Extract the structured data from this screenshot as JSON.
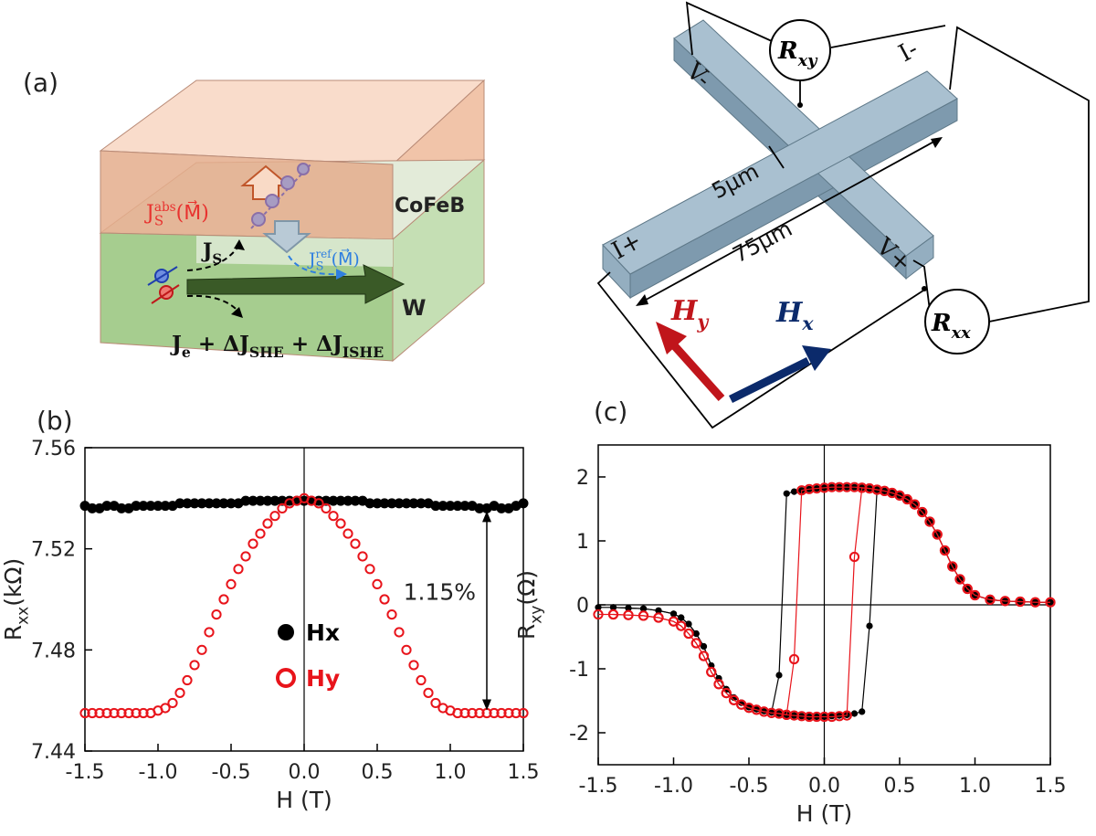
{
  "diagram_a": {
    "label": "(a)",
    "top_layer": "CoFeB",
    "bottom_layer": "W",
    "absorbed_spin_current": [
      {
        "text": "J",
        "sub": "S",
        "sup": "abs"
      },
      {
        "text": "(M⃗)"
      }
    ],
    "spin_current": [
      {
        "text": "J",
        "sub": "S"
      }
    ],
    "reflected_spin_current": [
      {
        "text": "J",
        "sub": "S",
        "sup": "ref"
      },
      {
        "text": "(M⃗)"
      }
    ],
    "charge_current": [
      {
        "text": "J",
        "sub": "e"
      },
      {
        "text": " + ΔJ",
        "sub": "SHE"
      },
      {
        "text": " + ΔJ",
        "sub": "ISHE"
      }
    ]
  },
  "device": {
    "pads": [
      "V-",
      "I-",
      "I+",
      "V+"
    ],
    "r_xy": [
      {
        "text": "R",
        "sub": "xy"
      }
    ],
    "r_xx": [
      {
        "text": "R",
        "sub": "xx"
      }
    ],
    "width": "5μm",
    "length": "75μm",
    "field_y": [
      {
        "text": "H",
        "sub": "y"
      }
    ],
    "field_x": [
      {
        "text": "H",
        "sub": "x"
      }
    ]
  },
  "chart_data": [
    {
      "type": "scatter",
      "panel_label": "(b)",
      "xlabel": "H (T)",
      "ylabel": [
        {
          "text": "R",
          "sub": "xx"
        },
        {
          "text": "(kΩ)"
        }
      ],
      "xlim": [
        -1.5,
        1.5
      ],
      "ylim": [
        7.44,
        7.56
      ],
      "xticks": [
        {
          "value": -1.5,
          "label": "-1.5"
        },
        {
          "value": -1,
          "label": "-1.0"
        },
        {
          "value": -0.5,
          "label": "-0.5"
        },
        {
          "value": 0,
          "label": "0.0"
        },
        0.5,
        {
          "value": 1,
          "label": "1.0"
        },
        1.5
      ],
      "yticks": [
        7.44,
        7.48,
        7.52,
        7.56
      ],
      "zero_lines": [
        "x"
      ],
      "legend": true,
      "annotation": "1.15%",
      "x": [
        -1.5,
        -1.45,
        -1.4,
        -1.35,
        -1.3,
        -1.25,
        -1.2,
        -1.15,
        -1.1,
        -1.05,
        -1,
        -0.95,
        -0.9,
        -0.85,
        -0.8,
        -0.75,
        -0.7,
        -0.65,
        -0.6,
        -0.55,
        -0.5,
        -0.45,
        -0.4,
        -0.35,
        -0.3,
        -0.25,
        -0.2,
        -0.15,
        -0.1,
        -0.05,
        0,
        0.05,
        0.1,
        0.15,
        0.2,
        0.25,
        0.3,
        0.35,
        0.4,
        0.45,
        0.5,
        0.55,
        0.6,
        0.65,
        0.7,
        0.75,
        0.8,
        0.85,
        0.9,
        0.95,
        1,
        1.05,
        1.1,
        1.15,
        1.2,
        1.25,
        1.3,
        1.35,
        1.4,
        1.45,
        1.5
      ],
      "series": [
        {
          "name": "Hx",
          "color": "#000000",
          "marker": "filled",
          "values": [
            7.537,
            7.536,
            7.536,
            7.537,
            7.537,
            7.536,
            7.536,
            7.537,
            7.537,
            7.537,
            7.537,
            7.537,
            7.537,
            7.538,
            7.538,
            7.538,
            7.538,
            7.538,
            7.538,
            7.538,
            7.538,
            7.538,
            7.539,
            7.539,
            7.539,
            7.539,
            7.539,
            7.539,
            7.539,
            7.539,
            7.539,
            7.539,
            7.539,
            7.539,
            7.539,
            7.539,
            7.539,
            7.539,
            7.539,
            7.538,
            7.538,
            7.538,
            7.538,
            7.538,
            7.538,
            7.538,
            7.538,
            7.538,
            7.537,
            7.537,
            7.537,
            7.537,
            7.537,
            7.537,
            7.536,
            7.536,
            7.537,
            7.536,
            7.536,
            7.537,
            7.538
          ]
        },
        {
          "name": "Hy",
          "color": "#e8141b",
          "marker": "open",
          "values": [
            7.455,
            7.455,
            7.455,
            7.455,
            7.455,
            7.455,
            7.455,
            7.455,
            7.455,
            7.455,
            7.456,
            7.457,
            7.459,
            7.463,
            7.468,
            7.474,
            7.48,
            7.487,
            7.494,
            7.5,
            7.506,
            7.512,
            7.517,
            7.522,
            7.526,
            7.53,
            7.533,
            7.536,
            7.538,
            7.539,
            7.54,
            7.539,
            7.538,
            7.536,
            7.533,
            7.53,
            7.526,
            7.522,
            7.517,
            7.512,
            7.506,
            7.5,
            7.494,
            7.487,
            7.48,
            7.474,
            7.468,
            7.463,
            7.459,
            7.457,
            7.456,
            7.455,
            7.455,
            7.455,
            7.455,
            7.455,
            7.455,
            7.455,
            7.455,
            7.455,
            7.455
          ]
        }
      ]
    },
    {
      "type": "scatter",
      "panel_label": "(c)",
      "xlabel": "H (T)",
      "ylabel": [
        {
          "text": "R",
          "sub": "xy"
        },
        {
          "text": "(Ω)"
        }
      ],
      "xlim": [
        -1.5,
        1.5
      ],
      "ylim": [
        -2.5,
        2.5
      ],
      "xticks": [
        {
          "value": -1.5,
          "label": "-1.5"
        },
        {
          "value": -1,
          "label": "-1.0"
        },
        {
          "value": -0.5,
          "label": "-0.5"
        },
        {
          "value": 0,
          "label": "0.0"
        },
        0.5,
        {
          "value": 1,
          "label": "1.0"
        },
        1.5
      ],
      "yticks": [
        -2,
        -1,
        0,
        1,
        2
      ],
      "zero_lines": [
        "x",
        "y"
      ],
      "connect": true,
      "series": [
        {
          "color": "#000000",
          "marker": "filled",
          "x": [
            1.5,
            1.4,
            1.3,
            1.2,
            1.1,
            1,
            0.95,
            0.9,
            0.85,
            0.8,
            0.75,
            0.7,
            0.65,
            0.6,
            0.55,
            0.5,
            0.45,
            0.4,
            0.35,
            0.3,
            0.25,
            0.2,
            0.15,
            0.1,
            0.05,
            0,
            -0.05,
            -0.1,
            -0.15,
            -0.2,
            -0.25,
            -0.3,
            -0.35,
            -0.4,
            -0.45,
            -0.5,
            -0.55,
            -0.6,
            -0.65,
            -0.7,
            -0.75,
            -0.8,
            -0.85,
            -0.9,
            -0.95,
            -1,
            -1.1,
            -1.2,
            -1.3,
            -1.4,
            -1.5
          ],
          "values": [
            0.04,
            0.04,
            0.05,
            0.06,
            0.08,
            0.15,
            0.25,
            0.4,
            0.6,
            0.85,
            1.1,
            1.3,
            1.45,
            1.57,
            1.65,
            1.71,
            1.75,
            1.78,
            1.8,
            1.82,
            1.83,
            1.84,
            1.84,
            1.84,
            1.84,
            1.83,
            1.82,
            1.81,
            1.79,
            1.77,
            1.74,
            -1.1,
            -1.68,
            -1.66,
            -1.63,
            -1.6,
            -1.53,
            -1.45,
            -1.32,
            -1.15,
            -0.95,
            -0.65,
            -0.45,
            -0.3,
            -0.2,
            -0.14,
            -0.09,
            -0.06,
            -0.05,
            -0.04,
            -0.04
          ]
        },
        {
          "color": "#000000",
          "marker": "filled",
          "x": [
            -1.4,
            -1.3,
            -1.2,
            -1.1,
            -1,
            -0.95,
            -0.9,
            -0.85,
            -0.8,
            -0.75,
            -0.7,
            -0.65,
            -0.6,
            -0.55,
            -0.5,
            -0.45,
            -0.4,
            -0.35,
            -0.3,
            -0.25,
            -0.2,
            -0.15,
            -0.1,
            -0.05,
            0,
            0.05,
            0.1,
            0.15,
            0.2,
            0.25,
            0.3,
            0.35,
            0.4,
            0.45,
            0.5,
            0.55,
            0.6,
            0.65,
            0.7,
            0.75,
            0.8,
            0.85,
            0.9,
            0.95,
            1,
            1.1,
            1.2,
            1.3,
            1.4,
            1.5
          ],
          "values": [
            -0.04,
            -0.05,
            -0.06,
            -0.09,
            -0.14,
            -0.2,
            -0.3,
            -0.45,
            -0.65,
            -0.95,
            -1.15,
            -1.32,
            -1.45,
            -1.53,
            -1.6,
            -1.63,
            -1.66,
            -1.68,
            -1.7,
            -1.72,
            -1.73,
            -1.74,
            -1.75,
            -1.75,
            -1.75,
            -1.74,
            -1.73,
            -1.72,
            -1.7,
            -1.67,
            -0.33,
            1.8,
            1.78,
            1.75,
            1.71,
            1.65,
            1.57,
            1.45,
            1.3,
            1.1,
            0.85,
            0.6,
            0.4,
            0.25,
            0.15,
            0.08,
            0.06,
            0.05,
            0.04,
            0.04
          ]
        },
        {
          "color": "#e8141b",
          "marker": "open",
          "x": [
            1.5,
            1.4,
            1.3,
            1.2,
            1.1,
            1,
            0.95,
            0.9,
            0.85,
            0.8,
            0.75,
            0.7,
            0.65,
            0.6,
            0.55,
            0.5,
            0.45,
            0.4,
            0.35,
            0.3,
            0.25,
            0.2,
            0.15,
            0.1,
            0.05,
            0,
            -0.05,
            -0.1,
            -0.15,
            -0.2,
            -0.25,
            -0.3,
            -0.35,
            -0.4,
            -0.45,
            -0.5,
            -0.55,
            -0.6,
            -0.65,
            -0.7,
            -0.75,
            -0.8,
            -0.85,
            -0.9,
            -0.95,
            -1,
            -1.1,
            -1.2,
            -1.3,
            -1.4,
            -1.5
          ],
          "values": [
            0.04,
            0.04,
            0.05,
            0.06,
            0.08,
            0.15,
            0.25,
            0.4,
            0.6,
            0.85,
            1.1,
            1.3,
            1.45,
            1.57,
            1.65,
            1.71,
            1.75,
            1.78,
            1.8,
            1.82,
            1.83,
            1.84,
            1.84,
            1.84,
            1.84,
            1.83,
            1.82,
            1.81,
            1.79,
            -0.85,
            -1.72,
            -1.7,
            -1.69,
            -1.67,
            -1.64,
            -1.61,
            -1.56,
            -1.49,
            -1.38,
            -1.24,
            -1.05,
            -0.8,
            -0.6,
            -0.45,
            -0.33,
            -0.26,
            -0.2,
            -0.17,
            -0.16,
            -0.15,
            -0.15
          ]
        },
        {
          "color": "#e8141b",
          "marker": "open",
          "x": [
            -1.4,
            -1.3,
            -1.2,
            -1.1,
            -1,
            -0.95,
            -0.9,
            -0.85,
            -0.8,
            -0.75,
            -0.7,
            -0.65,
            -0.6,
            -0.55,
            -0.5,
            -0.45,
            -0.4,
            -0.35,
            -0.3,
            -0.25,
            -0.2,
            -0.15,
            -0.1,
            -0.05,
            0,
            0.05,
            0.1,
            0.15,
            0.2,
            0.25,
            0.3,
            0.35,
            0.4,
            0.45,
            0.5,
            0.55,
            0.6,
            0.65,
            0.7,
            0.75,
            0.8,
            0.85,
            0.9,
            0.95,
            1,
            1.1,
            1.2,
            1.3,
            1.4,
            1.5
          ],
          "values": [
            -0.15,
            -0.16,
            -0.17,
            -0.2,
            -0.26,
            -0.33,
            -0.45,
            -0.6,
            -0.8,
            -1.05,
            -1.24,
            -1.38,
            -1.49,
            -1.56,
            -1.61,
            -1.64,
            -1.67,
            -1.69,
            -1.7,
            -1.72,
            -1.73,
            -1.74,
            -1.75,
            -1.75,
            -1.75,
            -1.75,
            -1.74,
            -1.73,
            0.75,
            1.83,
            1.82,
            1.8,
            1.78,
            1.75,
            1.71,
            1.65,
            1.57,
            1.45,
            1.3,
            1.1,
            0.85,
            0.6,
            0.4,
            0.25,
            0.15,
            0.08,
            0.06,
            0.05,
            0.04,
            0.04
          ]
        }
      ]
    }
  ]
}
